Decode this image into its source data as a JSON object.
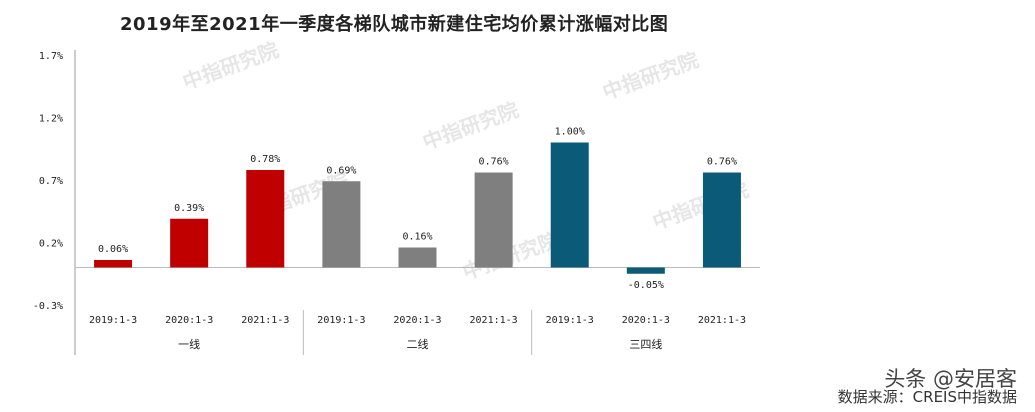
{
  "chart_data": {
    "type": "bar",
    "title": "2019年至2021年一季度各梯队城市新建住宅均价累计涨幅对比图",
    "ylim": [
      -0.3,
      1.7
    ],
    "yticks": [
      -0.3,
      0.2,
      0.7,
      1.2,
      1.7
    ],
    "ytick_labels": [
      "-0.3%",
      "0.2%",
      "0.7%",
      "1.2%",
      "1.7%"
    ],
    "groups": [
      {
        "name": "一线",
        "color": "#c00000",
        "bars": [
          {
            "label": "2019:1-3",
            "value": 0.06,
            "text": "0.06%"
          },
          {
            "label": "2020:1-3",
            "value": 0.39,
            "text": "0.39%"
          },
          {
            "label": "2021:1-3",
            "value": 0.78,
            "text": "0.78%"
          }
        ]
      },
      {
        "name": "二线",
        "color": "#7f7f7f",
        "bars": [
          {
            "label": "2019:1-3",
            "value": 0.69,
            "text": "0.69%"
          },
          {
            "label": "2020:1-3",
            "value": 0.16,
            "text": "0.16%"
          },
          {
            "label": "2021:1-3",
            "value": 0.76,
            "text": "0.76%"
          }
        ]
      },
      {
        "name": "三四线",
        "color": "#0b5a78",
        "bars": [
          {
            "label": "2019:1-3",
            "value": 1.0,
            "text": "1.00%"
          },
          {
            "label": "2020:1-3",
            "value": -0.05,
            "text": "-0.05%"
          },
          {
            "label": "2021:1-3",
            "value": 0.76,
            "text": "0.76%"
          }
        ]
      }
    ]
  },
  "watermark": "中指研究院",
  "credit": {
    "platform": "头条 @安居客",
    "source": "数据来源：CREIS中指数据"
  }
}
